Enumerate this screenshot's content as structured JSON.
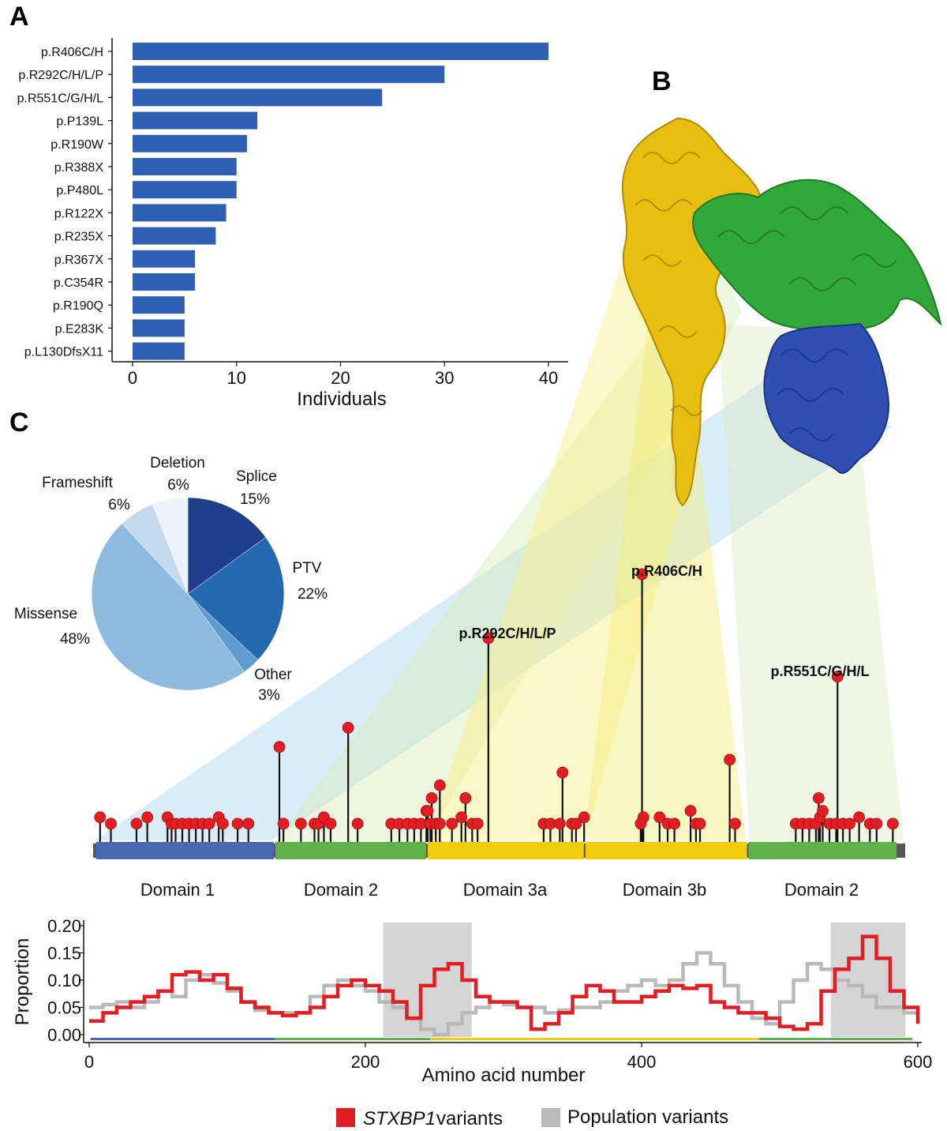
{
  "panels": {
    "a": "A",
    "b": "B",
    "c": "C"
  },
  "colors": {
    "bar": "#2f5fb3",
    "variant": "#e01e24",
    "population": "#b9b9b9",
    "domain1": "#4a68b0",
    "domain2": "#5fb148",
    "domain3": "#f2cc0c"
  },
  "chart_data": [
    {
      "type": "bar",
      "orientation": "horizontal",
      "categories": [
        "p.R406C/H",
        "p.R292C/H/L/P",
        "p.R551C/G/H/L",
        "p.P139L",
        "p.R190W",
        "p.R388X",
        "p.P480L",
        "p.R122X",
        "p.R235X",
        "p.R367X",
        "p.C354R",
        "p.R190Q",
        "p.E283K",
        "p.L130DfsX11"
      ],
      "values": [
        40,
        30,
        24,
        12,
        11,
        10,
        10,
        9,
        8,
        6,
        6,
        5,
        5,
        5
      ],
      "xlabel": "Individuals",
      "xticks": [
        "0",
        "10",
        "20",
        "30",
        "40"
      ],
      "xlim": [
        0,
        40
      ]
    },
    {
      "type": "pie",
      "slices": [
        {
          "label": "Splice",
          "pct_label": "15%",
          "value": 15,
          "color": "#1f3f8c"
        },
        {
          "label": "PTV",
          "pct_label": "22%",
          "value": 22,
          "color": "#2468b1"
        },
        {
          "label": "Other",
          "pct_label": "3%",
          "value": 3,
          "color": "#5f9bd1"
        },
        {
          "label": "Missense",
          "pct_label": "48%",
          "value": 48,
          "color": "#8dbadf"
        },
        {
          "label": "Frameshift",
          "pct_label": "6%",
          "value": 6,
          "color": "#c2d9ee"
        },
        {
          "label": "Deletion",
          "pct_label": "6%",
          "value": 6,
          "color": "#edf3fa"
        }
      ]
    },
    {
      "type": "lollipop",
      "labeled_variants": [
        {
          "label": "p.R406C/H",
          "position": 406,
          "count": 40
        },
        {
          "label": "p.R292C/H/L/P",
          "position": 292,
          "count": 30
        },
        {
          "label": "p.R551C/G/H/L",
          "position": 551,
          "count": 24
        }
      ],
      "domains": [
        {
          "label": "Domain 1",
          "start": 1,
          "end": 134,
          "color": "#4a68b0"
        },
        {
          "label": "Domain 2",
          "start": 134,
          "end": 247,
          "color": "#5fb148"
        },
        {
          "label": "Domain 3a",
          "start": 247,
          "end": 364,
          "color": "#f2cc0c"
        },
        {
          "label": "Domain 3b",
          "start": 364,
          "end": 485,
          "color": "#f2cc0c"
        },
        {
          "label": "Domain 2",
          "start": 485,
          "end": 596,
          "color": "#5fb148"
        }
      ]
    },
    {
      "type": "line",
      "xlabel": "Amino acid number",
      "ylabel": "Proportion",
      "xlim": [
        0,
        600
      ],
      "ylim": [
        0,
        0.2
      ],
      "xticks": [
        "0",
        "200",
        "400",
        "600"
      ],
      "yticks": [
        "0.00",
        "0.05",
        "0.10",
        "0.15",
        "0.20"
      ],
      "shaded_regions": [
        [
          213,
          277
        ],
        [
          537,
          591
        ]
      ],
      "series": [
        {
          "name": "STXBP1 variants",
          "color": "#e01e24",
          "x": [
            0,
            10,
            20,
            30,
            40,
            50,
            60,
            70,
            80,
            90,
            100,
            110,
            120,
            130,
            140,
            150,
            160,
            170,
            180,
            190,
            200,
            210,
            220,
            230,
            240,
            250,
            260,
            270,
            280,
            290,
            300,
            310,
            320,
            330,
            340,
            350,
            360,
            370,
            380,
            390,
            400,
            410,
            420,
            430,
            440,
            450,
            460,
            470,
            480,
            490,
            500,
            510,
            520,
            530,
            540,
            550,
            560,
            570,
            580,
            590,
            600
          ],
          "y": [
            0.025,
            0.04,
            0.05,
            0.06,
            0.07,
            0.08,
            0.11,
            0.115,
            0.1,
            0.11,
            0.085,
            0.06,
            0.05,
            0.04,
            0.035,
            0.04,
            0.05,
            0.07,
            0.09,
            0.1,
            0.09,
            0.08,
            0.06,
            0.03,
            0.09,
            0.12,
            0.13,
            0.1,
            0.07,
            0.06,
            0.06,
            0.05,
            0.01,
            0.02,
            0.04,
            0.07,
            0.09,
            0.08,
            0.06,
            0.06,
            0.07,
            0.08,
            0.09,
            0.085,
            0.09,
            0.06,
            0.05,
            0.04,
            0.04,
            0.03,
            0.015,
            0.01,
            0.02,
            0.08,
            0.12,
            0.14,
            0.18,
            0.14,
            0.08,
            0.05,
            0.02
          ]
        },
        {
          "name": "Population variants",
          "color": "#b9b9b9",
          "x": [
            0,
            10,
            20,
            30,
            40,
            50,
            60,
            70,
            80,
            90,
            100,
            110,
            120,
            130,
            140,
            150,
            160,
            170,
            180,
            190,
            200,
            210,
            220,
            230,
            240,
            250,
            260,
            270,
            280,
            290,
            300,
            310,
            320,
            330,
            340,
            350,
            360,
            370,
            380,
            390,
            400,
            410,
            420,
            430,
            440,
            450,
            460,
            470,
            480,
            490,
            500,
            510,
            520,
            530,
            540,
            550,
            560,
            570,
            580,
            590,
            600
          ],
          "y": [
            0.05,
            0.055,
            0.06,
            0.05,
            0.06,
            0.08,
            0.07,
            0.1,
            0.11,
            0.095,
            0.08,
            0.06,
            0.045,
            0.04,
            0.04,
            0.04,
            0.07,
            0.09,
            0.1,
            0.09,
            0.08,
            0.06,
            0.05,
            0.03,
            0.01,
            0.0,
            0.02,
            0.04,
            0.05,
            0.06,
            0.055,
            0.05,
            0.05,
            0.04,
            0.045,
            0.05,
            0.05,
            0.06,
            0.08,
            0.09,
            0.1,
            0.09,
            0.1,
            0.13,
            0.15,
            0.13,
            0.09,
            0.06,
            0.03,
            0.02,
            0.06,
            0.1,
            0.13,
            0.12,
            0.1,
            0.09,
            0.07,
            0.05,
            0.05,
            0.04,
            0.04
          ]
        }
      ]
    }
  ]
}
